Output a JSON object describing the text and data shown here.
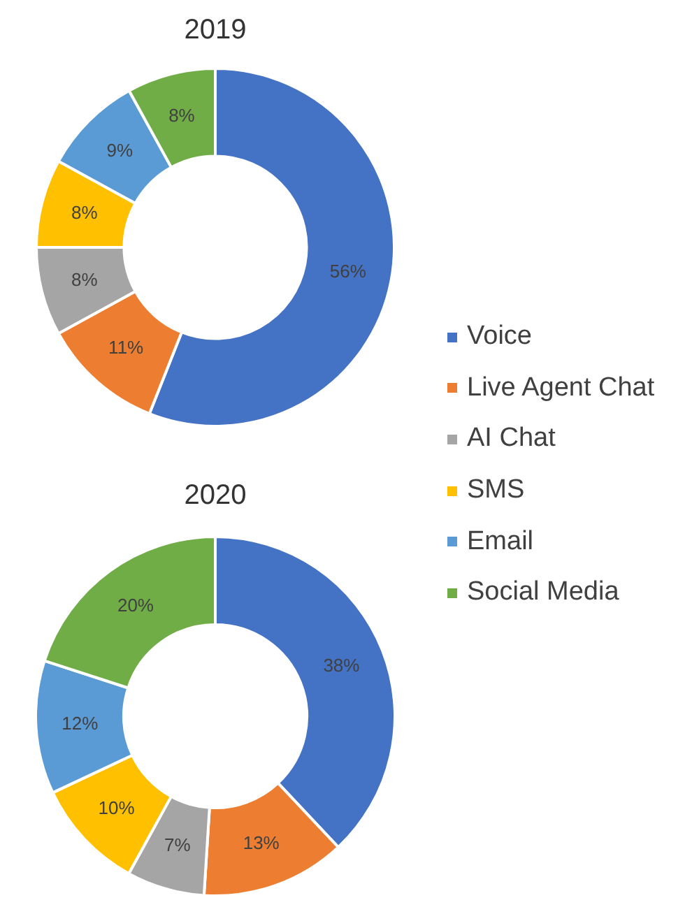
{
  "chart_data": {
    "type": "donut",
    "categories": [
      "Voice",
      "Live Agent Chat",
      "AI Chat",
      "SMS",
      "Email",
      "Social Media"
    ],
    "colors": [
      "#4472c4",
      "#ed7d31",
      "#a5a5a5",
      "#ffc000",
      "#5b9bd5",
      "#70ad47"
    ],
    "series": [
      {
        "name": "2019",
        "values": [
          56,
          11,
          8,
          8,
          9,
          8
        ],
        "value_labels": [
          "56%",
          "11%",
          "8%",
          "8%",
          "9%",
          "8%"
        ]
      },
      {
        "name": "2020",
        "values": [
          38,
          13,
          7,
          10,
          12,
          20
        ],
        "value_labels": [
          "38%",
          "13%",
          "7%",
          "10%",
          "12%",
          "20%"
        ]
      }
    ],
    "legend": "right"
  }
}
